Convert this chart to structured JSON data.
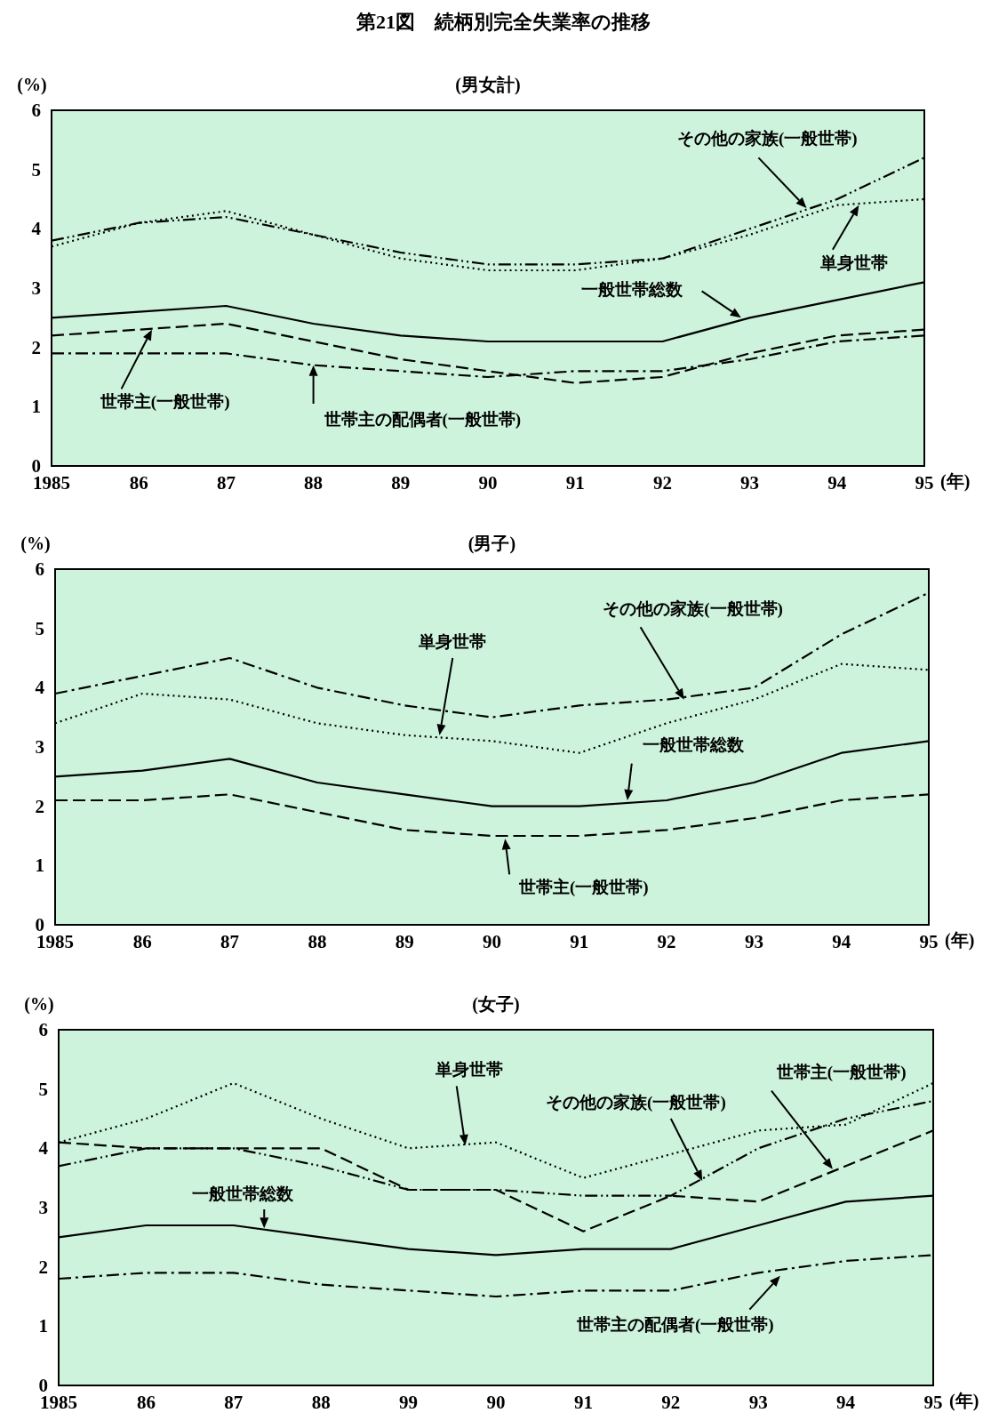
{
  "chart_data": [
    {
      "type": "line",
      "title": "第21図　続柄別完全失業率の推移",
      "subtitle": "(男女計)",
      "xlabel": "(年)",
      "ylabel": "(%)",
      "categories": [
        "1985",
        "86",
        "87",
        "88",
        "89",
        "90",
        "91",
        "92",
        "93",
        "94",
        "95"
      ],
      "ylim": [
        0,
        6
      ],
      "yticks": [
        0,
        1,
        2,
        3,
        4,
        5,
        6
      ],
      "grid": false,
      "marker": "none",
      "series": [
        {
          "color": "#000000",
          "line_style": "solid",
          "values": [
            2.5,
            2.6,
            2.7,
            2.4,
            2.2,
            2.1,
            2.1,
            2.1,
            2.5,
            2.8,
            3.1
          ]
        },
        {
          "color": "#000000",
          "line_style": "dashed",
          "values": [
            2.2,
            2.3,
            2.4,
            2.1,
            1.8,
            1.6,
            1.4,
            1.5,
            1.9,
            2.2,
            2.3
          ]
        },
        {
          "color": "#000000",
          "line_style": "dashdot",
          "values": [
            1.9,
            1.9,
            1.9,
            1.7,
            1.6,
            1.5,
            1.6,
            1.6,
            1.8,
            2.1,
            2.2
          ]
        },
        {
          "color": "#000000",
          "line_style": "dashdotdot",
          "values": [
            3.8,
            4.1,
            4.2,
            3.9,
            3.6,
            3.4,
            3.4,
            3.5,
            4.0,
            4.5,
            5.2
          ]
        },
        {
          "color": "#000000",
          "line_style": "dotted",
          "values": [
            3.7,
            4.1,
            4.3,
            3.9,
            3.5,
            3.3,
            3.3,
            3.5,
            3.9,
            4.4,
            4.5
          ]
        }
      ],
      "annotations": [
        "その他の家族(一般世帯)",
        "単身世帯",
        "一般世帯総数",
        "世帯主(一般世帯)",
        {
          "text": "世帯主の配偶者(一般世帯)",
          "x": "88",
          "y": 1.7
        }
      ]
    },
    {
      "type": "line",
      "subtitle": "(男子)",
      "xlabel": "(年)",
      "ylabel": "(%)",
      "categories": [
        "1985",
        "86",
        "87",
        "88",
        "89",
        "90",
        "91",
        "92",
        "93",
        "94",
        "95"
      ],
      "ylim": [
        0,
        6
      ],
      "yticks": [
        0,
        1,
        2,
        3,
        4,
        5,
        6
      ],
      "grid": false,
      "marker": "none",
      "series": [
        {
          "color": "#000000",
          "line_style": "solid",
          "values": [
            2.5,
            2.6,
            2.8,
            2.4,
            2.2,
            2.0,
            2.0,
            2.1,
            2.4,
            2.9,
            3.1
          ]
        },
        {
          "color": "#000000",
          "line_style": "dashed",
          "values": [
            2.1,
            2.1,
            2.2,
            1.9,
            1.6,
            1.5,
            1.5,
            1.6,
            1.8,
            2.1,
            2.2
          ]
        },
        {
          "color": "#000000",
          "line_style": "dashdot",
          "values": [
            3.9,
            4.2,
            4.5,
            4.0,
            3.7,
            3.5,
            3.7,
            3.8,
            4.0,
            4.9,
            5.6
          ]
        },
        {
          "color": "#000000",
          "line_style": "dotted",
          "values": [
            3.4,
            3.9,
            3.8,
            3.4,
            3.2,
            3.1,
            2.9,
            3.4,
            3.8,
            4.4,
            4.3
          ]
        }
      ],
      "annotations": [
        "単身世帯",
        "その他の家族(一般世帯)",
        "一般世帯総数",
        "世帯主(一般世帯)"
      ]
    },
    {
      "type": "line",
      "subtitle": "(女子)",
      "xlabel": "(年)",
      "ylabel": "(%)",
      "categories": [
        "1985",
        "86",
        "87",
        "88",
        "99",
        "90",
        "91",
        "92",
        "93",
        "94",
        "95"
      ],
      "ylim": [
        0,
        6
      ],
      "yticks": [
        0,
        1,
        2,
        3,
        4,
        5,
        6
      ],
      "grid": false,
      "marker": "none",
      "series": [
        {
          "color": "#000000",
          "line_style": "solid",
          "values": [
            2.5,
            2.7,
            2.7,
            2.5,
            2.3,
            2.2,
            2.3,
            2.3,
            2.7,
            3.1,
            3.2
          ]
        },
        {
          "color": "#000000",
          "line_style": "dashed",
          "values": [
            4.1,
            4.0,
            4.0,
            4.0,
            3.3,
            3.3,
            2.6,
            3.2,
            3.1,
            3.7,
            4.3
          ]
        },
        {
          "color": "#000000",
          "line_style": "dashdot",
          "values": [
            1.8,
            1.9,
            1.9,
            1.7,
            1.6,
            1.5,
            1.6,
            1.6,
            1.9,
            2.1,
            2.2
          ]
        },
        {
          "color": "#000000",
          "line_style": "dashdotdot",
          "values": [
            3.7,
            4.0,
            4.0,
            3.7,
            3.3,
            3.3,
            3.2,
            3.2,
            4.0,
            4.5,
            4.8
          ]
        },
        {
          "color": "#000000",
          "line_style": "dotted",
          "values": [
            4.1,
            4.5,
            5.1,
            4.5,
            4.0,
            4.1,
            3.5,
            3.9,
            4.3,
            4.4,
            5.1
          ]
        }
      ],
      "annotations": [
        "単身世帯",
        "その他の家族(一般世帯)",
        "世帯主(一般世帯)",
        "一般世帯総数",
        "世帯主の配偶者(一般世帯)"
      ]
    }
  ]
}
